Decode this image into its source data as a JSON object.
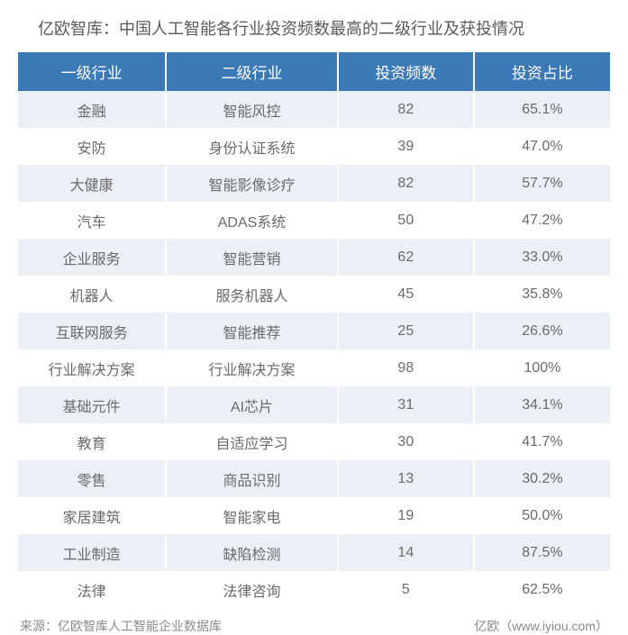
{
  "title": "亿欧智库：中国人工智能各行业投资频数最高的二级行业及获投情况",
  "table": {
    "type": "table",
    "header_bg": "#3b79b7",
    "header_text_color": "#ffffff",
    "row_even_bg": "#eaf0f6",
    "row_odd_bg": "#ffffff",
    "cell_text_color": "#6a6a6a",
    "title_fontsize": 18,
    "header_fontsize": 17,
    "cell_fontsize": 16,
    "footer_fontsize": 14,
    "columns": [
      "一级行业",
      "二级行业",
      "投资频数",
      "投资占比"
    ],
    "col_widths_pct": [
      25,
      29,
      23,
      23
    ],
    "rows": [
      [
        "金融",
        "智能风控",
        "82",
        "65.1%"
      ],
      [
        "安防",
        "身份认证系统",
        "39",
        "47.0%"
      ],
      [
        "大健康",
        "智能影像诊疗",
        "82",
        "57.7%"
      ],
      [
        "汽车",
        "ADAS系统",
        "50",
        "47.2%"
      ],
      [
        "企业服务",
        "智能营销",
        "62",
        "33.0%"
      ],
      [
        "机器人",
        "服务机器人",
        "45",
        "35.8%"
      ],
      [
        "互联网服务",
        "智能推荐",
        "25",
        "26.6%"
      ],
      [
        "行业解决方案",
        "行业解决方案",
        "98",
        "100%"
      ],
      [
        "基础元件",
        "AI芯片",
        "31",
        "34.1%"
      ],
      [
        "教育",
        "自适应学习",
        "30",
        "41.7%"
      ],
      [
        "零售",
        "商品识别",
        "13",
        "30.2%"
      ],
      [
        "家居建筑",
        "智能家电",
        "19",
        "50.0%"
      ],
      [
        "工业制造",
        "缺陷检测",
        "14",
        "87.5%"
      ],
      [
        "法律",
        "法律咨询",
        "5",
        "62.5%"
      ]
    ]
  },
  "footer": {
    "source": "来源：亿欧智库人工智能企业数据库",
    "brand": "亿欧（www.iyiou.com）"
  }
}
